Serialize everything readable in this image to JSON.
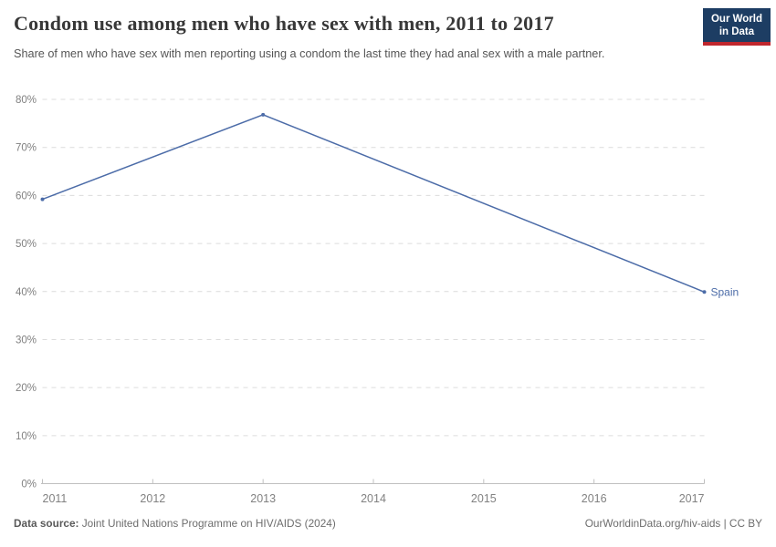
{
  "header": {
    "title": "Condom use among men who have sex with men, 2011 to 2017",
    "subtitle": "Share of men who have sex with men reporting using a condom the last time they had anal sex with a male partner.",
    "logo": {
      "line1": "Our World",
      "line2": "in Data"
    }
  },
  "chart_data": {
    "type": "line",
    "title": "Condom use among men who have sex with men, 2011 to 2017",
    "xlabel": "",
    "ylabel": "",
    "xlim": [
      2011,
      2017
    ],
    "ylim": [
      0,
      80
    ],
    "x_ticks": [
      2011,
      2012,
      2013,
      2014,
      2015,
      2016,
      2017
    ],
    "y_ticks": [
      0,
      10,
      20,
      30,
      40,
      50,
      60,
      70,
      80
    ],
    "y_tick_suffix": "%",
    "grid": "horizontal-dashed",
    "legend_position": "end-of-line-label",
    "series": [
      {
        "name": "Spain",
        "color": "#4c6ca8",
        "x": [
          2011,
          2013,
          2017
        ],
        "values": [
          59.2,
          76.8,
          39.9
        ]
      }
    ]
  },
  "footer": {
    "source_label": "Data source:",
    "source_text": "Joint United Nations Programme on HIV/AIDS (2024)",
    "credit": "OurWorldinData.org/hiv-aids | CC BY"
  },
  "colors": {
    "line": "#4c6ca8",
    "grid": "#dcdcdc",
    "axis": "#c0c0c0",
    "tick_label": "#818181",
    "end_label": "#4c6ca8",
    "title": "#383838",
    "subtitle": "#555555",
    "footer": "#6d6d6d",
    "logo_bg": "#1d3d63",
    "logo_accent": "#c0262d",
    "background": "#ffffff"
  }
}
